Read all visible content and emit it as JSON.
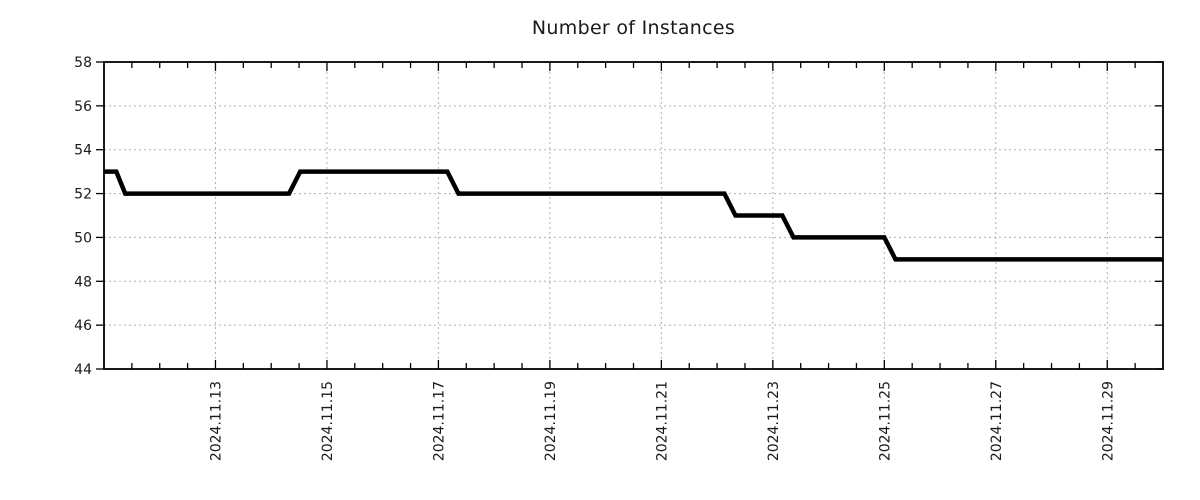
{
  "chart_data": {
    "type": "line",
    "title": "Number of Instances",
    "xlabel": "",
    "ylabel": "",
    "legend": "none",
    "background_color": "#ffffff",
    "grid": {
      "show": true,
      "style": "dashed",
      "color": "#b0b0b0"
    },
    "border_color": "#000000",
    "x_axis": {
      "start": "2024-11-11 00:00",
      "end": "2024-11-30 00:00",
      "span_days": 19,
      "minor_tick_interval_days": 0.5,
      "major_ticks": [
        {
          "day": 2,
          "label": "2024.11.13"
        },
        {
          "day": 4,
          "label": "2024.11.15"
        },
        {
          "day": 6,
          "label": "2024.11.17"
        },
        {
          "day": 8,
          "label": "2024.11.19"
        },
        {
          "day": 10,
          "label": "2024.11.21"
        },
        {
          "day": 12,
          "label": "2024.11.23"
        },
        {
          "day": 14,
          "label": "2024.11.25"
        },
        {
          "day": 16,
          "label": "2024.11.27"
        },
        {
          "day": 18,
          "label": "2024.11.29"
        }
      ]
    },
    "y_axis": {
      "min": 44,
      "max": 58,
      "tick_step": 2,
      "tick_labels": [
        "44",
        "46",
        "48",
        "50",
        "52",
        "54",
        "56",
        "58"
      ]
    },
    "series": [
      {
        "name": "Number of Instances",
        "color": "#000000",
        "line_width": 4.5,
        "points": [
          {
            "day": 0.0,
            "date": "2024-11-11 00:00",
            "value": 53
          },
          {
            "day": 0.22,
            "date": "2024-11-11 05:15",
            "value": 53
          },
          {
            "day": 0.38,
            "date": "2024-11-11 09:10",
            "value": 52
          },
          {
            "day": 3.32,
            "date": "2024-11-14 07:40",
            "value": 52
          },
          {
            "day": 3.52,
            "date": "2024-11-14 12:30",
            "value": 53
          },
          {
            "day": 6.16,
            "date": "2024-11-17 03:50",
            "value": 53
          },
          {
            "day": 6.36,
            "date": "2024-11-17 08:40",
            "value": 52
          },
          {
            "day": 11.13,
            "date": "2024-11-22 03:05",
            "value": 52
          },
          {
            "day": 11.33,
            "date": "2024-11-22 07:55",
            "value": 51
          },
          {
            "day": 12.17,
            "date": "2024-11-23 04:05",
            "value": 51
          },
          {
            "day": 12.37,
            "date": "2024-11-23 08:55",
            "value": 50
          },
          {
            "day": 14.0,
            "date": "2024-11-25 00:00",
            "value": 50
          },
          {
            "day": 14.2,
            "date": "2024-11-25 04:50",
            "value": 49
          },
          {
            "day": 19.0,
            "date": "2024-11-30 00:00",
            "value": 49
          }
        ]
      }
    ]
  }
}
